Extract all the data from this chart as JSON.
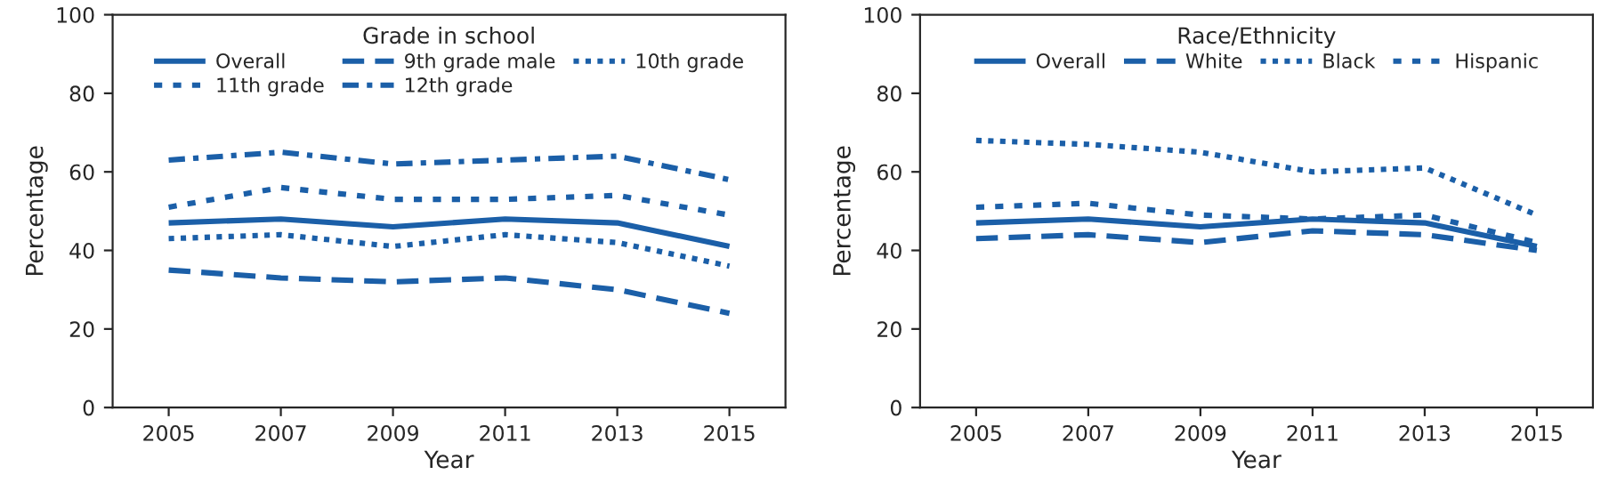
{
  "chart_data": [
    {
      "type": "line",
      "legend_title": "Grade in school",
      "xlabel": "Year",
      "ylabel": "Percentage",
      "x": [
        2005,
        2007,
        2009,
        2011,
        2013,
        2015
      ],
      "xlim": [
        2004,
        2016
      ],
      "xticks": [
        2005,
        2007,
        2009,
        2011,
        2013,
        2015
      ],
      "ylim": [
        0,
        100
      ],
      "yticks": [
        0,
        20,
        40,
        60,
        80,
        100
      ],
      "grid": false,
      "legend": "top",
      "marker": "none",
      "series": [
        {
          "name": "Overall",
          "color": "#1b5fa8",
          "line_style": "solid",
          "values": [
            47,
            48,
            46,
            48,
            47,
            41
          ]
        },
        {
          "name": "9th grade male",
          "color": "#1b5fa8",
          "line_style": "dashed",
          "values": [
            35,
            33,
            32,
            33,
            30,
            24
          ]
        },
        {
          "name": "10th grade",
          "color": "#1b5fa8",
          "line_style": "dotted",
          "values": [
            43,
            44,
            41,
            44,
            42,
            36
          ]
        },
        {
          "name": "11th grade",
          "color": "#1b5fa8",
          "line_style": "short dashed",
          "values": [
            51,
            56,
            53,
            53,
            54,
            49
          ]
        },
        {
          "name": "12th grade",
          "color": "#1b5fa8",
          "line_style": "dashdot",
          "values": [
            63,
            65,
            62,
            63,
            64,
            58
          ]
        }
      ]
    },
    {
      "type": "line",
      "legend_title": "Race/Ethnicity",
      "xlabel": "Year",
      "ylabel": "Percentage",
      "x": [
        2005,
        2007,
        2009,
        2011,
        2013,
        2015
      ],
      "xlim": [
        2004,
        2016
      ],
      "xticks": [
        2005,
        2007,
        2009,
        2011,
        2013,
        2015
      ],
      "ylim": [
        0,
        100
      ],
      "yticks": [
        0,
        20,
        40,
        60,
        80,
        100
      ],
      "grid": false,
      "legend": "top",
      "marker": "none",
      "series": [
        {
          "name": "Overall",
          "color": "#1b5fa8",
          "line_style": "solid",
          "values": [
            47,
            48,
            46,
            48,
            47,
            41
          ]
        },
        {
          "name": "White",
          "color": "#1b5fa8",
          "line_style": "dashed",
          "values": [
            43,
            44,
            42,
            45,
            44,
            40
          ]
        },
        {
          "name": "Black",
          "color": "#1b5fa8",
          "line_style": "dotted",
          "values": [
            68,
            67,
            65,
            60,
            61,
            49
          ]
        },
        {
          "name": "Hispanic",
          "color": "#1b5fa8",
          "line_style": "short dashed",
          "values": [
            51,
            52,
            49,
            48,
            49,
            42
          ]
        }
      ]
    }
  ]
}
